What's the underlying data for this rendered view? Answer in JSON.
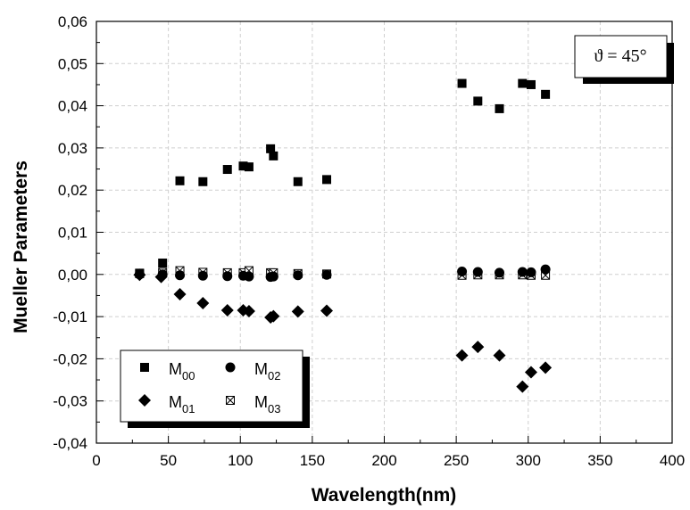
{
  "chart_data": {
    "type": "scatter",
    "title": "",
    "xlabel": "Wavelength(nm)",
    "ylabel": "Mueller Parameters",
    "xlim": [
      0,
      400
    ],
    "ylim": [
      -0.04,
      0.06
    ],
    "x_ticks": [
      "0",
      "50",
      "100",
      "150",
      "200",
      "250",
      "300",
      "350",
      "400"
    ],
    "y_ticks": [
      "-0,04",
      "-0,03",
      "-0,02",
      "-0,01",
      "0,00",
      "0,01",
      "0,02",
      "0,03",
      "0,04",
      "0,05",
      "0,06"
    ],
    "grid": true,
    "legend_position": "bottom-left",
    "annotation": "ϑ = 45°",
    "series": [
      {
        "name": "M00",
        "label_main": "M",
        "label_sub": "00",
        "marker": "square",
        "points": [
          [
            30,
            0.0003
          ],
          [
            46,
            0.0027
          ],
          [
            58,
            0.0222
          ],
          [
            74,
            0.022
          ],
          [
            91,
            0.0249
          ],
          [
            102,
            0.0257
          ],
          [
            106,
            0.0255
          ],
          [
            121,
            0.0298
          ],
          [
            123,
            0.0281
          ],
          [
            140,
            0.022
          ],
          [
            160,
            0.0225
          ],
          [
            254,
            0.0453
          ],
          [
            265,
            0.0411
          ],
          [
            280,
            0.0393
          ],
          [
            296,
            0.0453
          ],
          [
            302,
            0.045
          ],
          [
            312,
            0.0427
          ]
        ]
      },
      {
        "name": "M01",
        "label_main": "M",
        "label_sub": "01",
        "marker": "diamond",
        "points": [
          [
            30,
            -0.0001
          ],
          [
            45,
            -0.0006
          ],
          [
            58,
            -0.0047
          ],
          [
            74,
            -0.0068
          ],
          [
            91,
            -0.0085
          ],
          [
            102,
            -0.0085
          ],
          [
            106,
            -0.0087
          ],
          [
            121,
            -0.0102
          ],
          [
            123,
            -0.0099
          ],
          [
            140,
            -0.0088
          ],
          [
            160,
            -0.0086
          ],
          [
            254,
            -0.0192
          ],
          [
            265,
            -0.0172
          ],
          [
            280,
            -0.0192
          ],
          [
            296,
            -0.0266
          ],
          [
            302,
            -0.0232
          ],
          [
            312,
            -0.0221
          ]
        ]
      },
      {
        "name": "M02",
        "label_main": "M",
        "label_sub": "02",
        "marker": "circle",
        "points": [
          [
            30,
            0.0
          ],
          [
            46,
            0.0
          ],
          [
            58,
            -0.0002
          ],
          [
            74,
            -0.0003
          ],
          [
            91,
            -0.0004
          ],
          [
            102,
            -0.0003
          ],
          [
            106,
            -0.0005
          ],
          [
            121,
            -0.0006
          ],
          [
            123,
            -0.0005
          ],
          [
            140,
            -0.0002
          ],
          [
            160,
            -0.0001
          ],
          [
            254,
            0.0007
          ],
          [
            265,
            0.0006
          ],
          [
            280,
            0.0004
          ],
          [
            296,
            0.0006
          ],
          [
            302,
            0.0005
          ],
          [
            312,
            0.0012
          ]
        ]
      },
      {
        "name": "M03",
        "label_main": "M",
        "label_sub": "03",
        "marker": "crossed-square",
        "points": [
          [
            30,
            0.0002
          ],
          [
            46,
            0.0005
          ],
          [
            58,
            0.0009
          ],
          [
            74,
            0.0005
          ],
          [
            91,
            0.0004
          ],
          [
            102,
            0.0004
          ],
          [
            106,
            0.0009
          ],
          [
            121,
            0.0004
          ],
          [
            123,
            0.0004
          ],
          [
            140,
            0.0002
          ],
          [
            160,
            0.0001
          ],
          [
            254,
            -0.0002
          ],
          [
            265,
            -0.0001
          ],
          [
            280,
            -0.0001
          ],
          [
            296,
            -0.0001
          ],
          [
            302,
            -0.0002
          ],
          [
            312,
            -0.0002
          ]
        ]
      }
    ]
  }
}
